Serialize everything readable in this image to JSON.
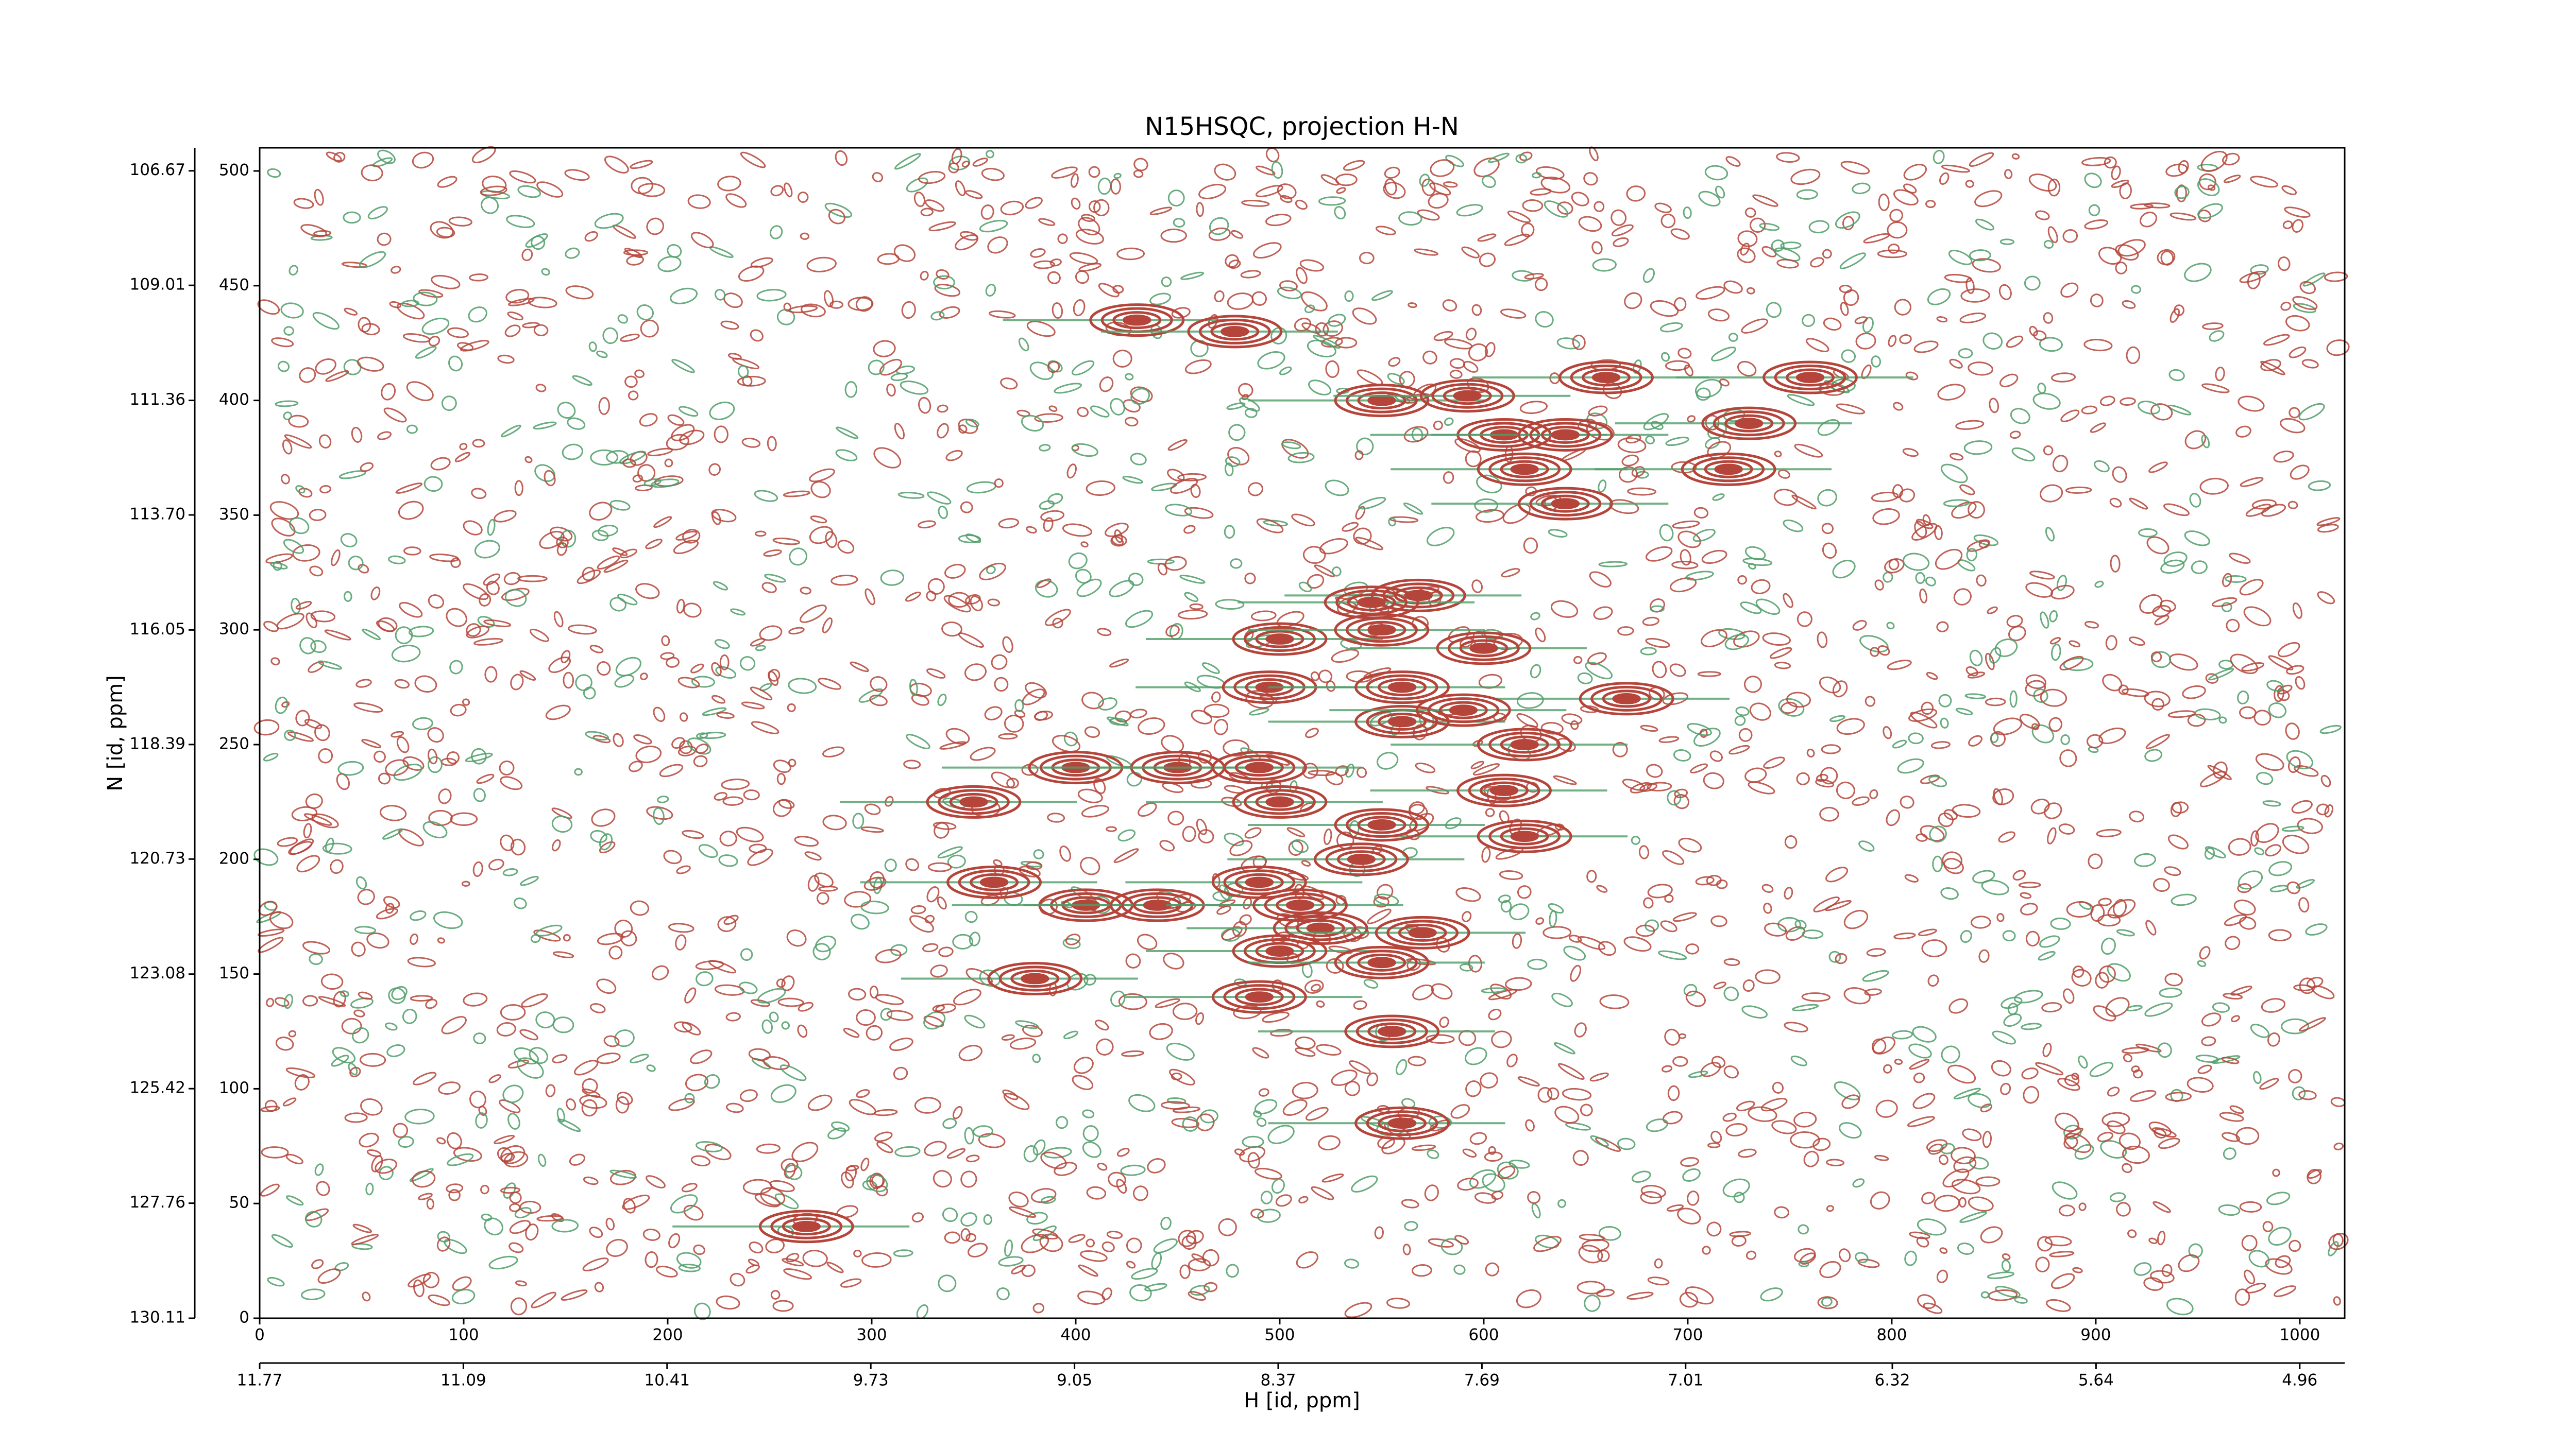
{
  "chart_data": {
    "type": "contour",
    "title": "N15HSQC, projection H-N",
    "xlabel": "H [id, ppm]",
    "ylabel": "N [id, ppm]",
    "xlim": [
      0,
      1022
    ],
    "xticks": [
      0,
      100,
      200,
      300,
      400,
      500,
      600,
      700,
      800,
      900,
      1000
    ],
    "ylim": [
      0,
      510.1
    ],
    "yticks": [
      0,
      50,
      100,
      150,
      200,
      250,
      300,
      350,
      400,
      450,
      500
    ],
    "x2lim": [
      11.77,
      4.81
    ],
    "x2ticks": [
      11.77,
      11.09,
      10.41,
      9.73,
      9.05,
      8.37,
      7.69,
      7.01,
      6.32,
      5.64,
      4.96
    ],
    "y2lim": [
      130.11,
      106.2
    ],
    "y2ticks": [
      130.11,
      127.76,
      125.42,
      123.08,
      120.73,
      118.39,
      116.05,
      {
        "value": 113.7,
        "label": "113.70"
      },
      111.36,
      109.01,
      106.67
    ],
    "positive_color": "#b5453a",
    "negative_color": "#4f9e68",
    "peaks": {
      "x": [
        268,
        430,
        478,
        550,
        592,
        660,
        760,
        730,
        720,
        610,
        640,
        620,
        640,
        568,
        545,
        500,
        550,
        600,
        670,
        495,
        560,
        560,
        590,
        620,
        400,
        450,
        490,
        350,
        500,
        610,
        620,
        550,
        540,
        490,
        360,
        405,
        440,
        510,
        520,
        570,
        500,
        550,
        380,
        490,
        555,
        560
      ],
      "y": [
        40,
        435,
        430,
        400,
        402,
        410,
        410,
        390,
        370,
        385,
        385,
        370,
        355,
        315,
        312,
        296,
        300,
        292,
        270,
        275,
        275,
        260,
        265,
        250,
        240,
        240,
        240,
        225,
        225,
        230,
        210,
        215,
        200,
        190,
        190,
        180,
        180,
        180,
        170,
        168,
        160,
        155,
        148,
        140,
        125,
        85
      ]
    }
  }
}
